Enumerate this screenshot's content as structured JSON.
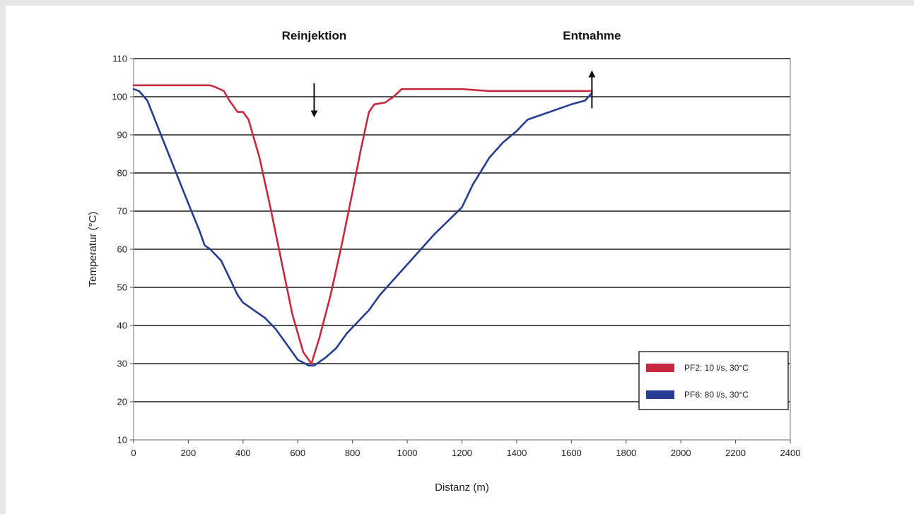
{
  "chart_data": {
    "type": "line",
    "xlabel": "Distanz (m)",
    "ylabel": "Temperatur (°C)",
    "xlim": [
      0,
      2400
    ],
    "ylim": [
      10,
      110
    ],
    "xticks": [
      0,
      200,
      400,
      600,
      800,
      1000,
      1200,
      1400,
      1600,
      1800,
      2000,
      2200,
      2400
    ],
    "yticks": [
      10,
      20,
      30,
      40,
      50,
      60,
      70,
      80,
      90,
      100,
      110
    ],
    "grid": "horizontal",
    "legend_position": "bottom-right",
    "annotations": [
      {
        "text": "Reinjektion",
        "x": 660,
        "arrow": "down",
        "arrow_from": 103.5,
        "arrow_to": 95.5
      },
      {
        "text": "Entnahme",
        "x": 1675,
        "arrow": "up",
        "arrow_from": 97,
        "arrow_to": 106
      }
    ],
    "series": [
      {
        "name": "PF2: 10 l/s, 30°C",
        "color": "#c8283f",
        "x": [
          0,
          100,
          200,
          280,
          300,
          330,
          350,
          380,
          400,
          420,
          460,
          500,
          540,
          580,
          620,
          650,
          680,
          720,
          760,
          800,
          830,
          860,
          880,
          920,
          950,
          980,
          1000,
          1100,
          1200,
          1300,
          1400,
          1500,
          1600,
          1675
        ],
        "y": [
          103,
          103,
          103,
          103,
          102.5,
          101.5,
          99,
          96,
          96,
          94,
          84,
          71,
          57,
          43,
          33,
          30,
          37,
          48,
          61,
          75,
          86,
          96,
          98,
          98.5,
          100,
          102,
          102,
          102,
          102,
          101.5,
          101.5,
          101.5,
          101.5,
          101.5
        ]
      },
      {
        "name": "PF6: 80 l/s, 30°C",
        "color": "#263d8f",
        "x": [
          0,
          20,
          50,
          100,
          150,
          200,
          240,
          260,
          280,
          320,
          360,
          380,
          400,
          440,
          480,
          520,
          560,
          600,
          640,
          660,
          680,
          700,
          740,
          780,
          820,
          860,
          900,
          1000,
          1100,
          1200,
          1240,
          1300,
          1350,
          1400,
          1440,
          1480,
          1520,
          1560,
          1600,
          1650,
          1675
        ],
        "y": [
          102,
          101.5,
          99,
          90,
          81,
          72,
          65,
          61,
          60,
          57,
          51,
          48,
          46,
          44,
          42,
          39,
          35,
          31,
          29.5,
          29.5,
          30.5,
          31.5,
          34,
          38,
          41,
          44,
          48,
          56,
          64,
          71,
          77,
          84,
          88,
          91,
          94,
          95,
          96,
          97,
          98,
          99,
          101
        ]
      }
    ]
  }
}
